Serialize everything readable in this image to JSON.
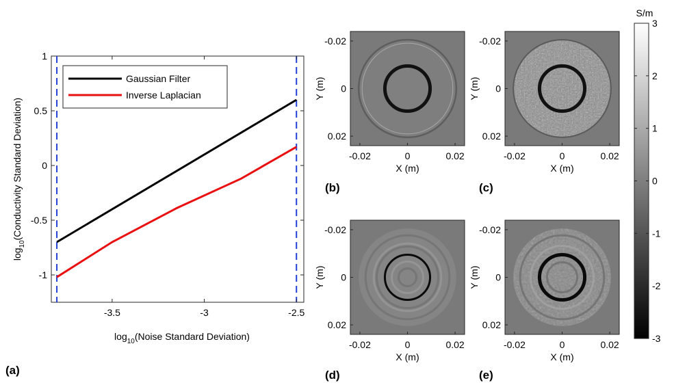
{
  "chart_data": [
    {
      "type": "line",
      "panel_label": "(a)",
      "xlabel": "log",
      "xlabel_sub": "10",
      "xlabel_rest": "(Noise Standard Deviation)",
      "ylabel": "log",
      "ylabel_sub": "10",
      "ylabel_rest": "(Conductivity Standard Deviation)",
      "xlim": [
        -3.83,
        -2.46
      ],
      "ylim": [
        -1.25,
        1.0
      ],
      "xticks": [
        -3.5,
        -3.0,
        -2.5
      ],
      "xtick_labels": [
        "-3.5",
        "-3",
        "-2.5"
      ],
      "yticks": [
        -1.0,
        -0.5,
        0.0,
        0.5,
        1.0
      ],
      "ytick_labels": [
        "-1",
        "-0.5",
        "0",
        "0.5",
        "1"
      ],
      "vlines": [
        -3.8,
        -2.5
      ],
      "vline_color": "#1f3fd6",
      "grid": false,
      "legend_position": "top-left",
      "series": [
        {
          "name": "Gaussian Filter",
          "color": "#000000",
          "x": [
            -3.8,
            -2.5
          ],
          "y": [
            -0.7,
            0.6
          ]
        },
        {
          "name": "Inverse Laplacian",
          "color": "#e81010",
          "x": [
            -3.8,
            -3.5,
            -3.15,
            -2.8,
            -2.5
          ],
          "y": [
            -1.02,
            -0.7,
            -0.39,
            -0.12,
            0.17
          ]
        }
      ]
    },
    {
      "type": "heatmap",
      "colorbar": {
        "title": "S/m",
        "ticks": [
          3,
          2,
          1,
          0,
          -1,
          -2,
          -3
        ],
        "tick_labels": [
          "3",
          "2",
          "1",
          "0",
          "-1",
          "-2",
          "-3"
        ]
      },
      "axis_ticks": [
        -0.02,
        0,
        0.02
      ],
      "axis_tick_labels": [
        "-0.02",
        "0",
        "0.02"
      ],
      "xlabel": "X (m)",
      "ylabel": "Y (m)",
      "panels": [
        {
          "label": "(b)",
          "style": "smooth"
        },
        {
          "label": "(c)",
          "style": "noisy"
        },
        {
          "label": "(d)",
          "style": "ringing-thin"
        },
        {
          "label": "(e)",
          "style": "ringing-thick"
        }
      ]
    }
  ]
}
